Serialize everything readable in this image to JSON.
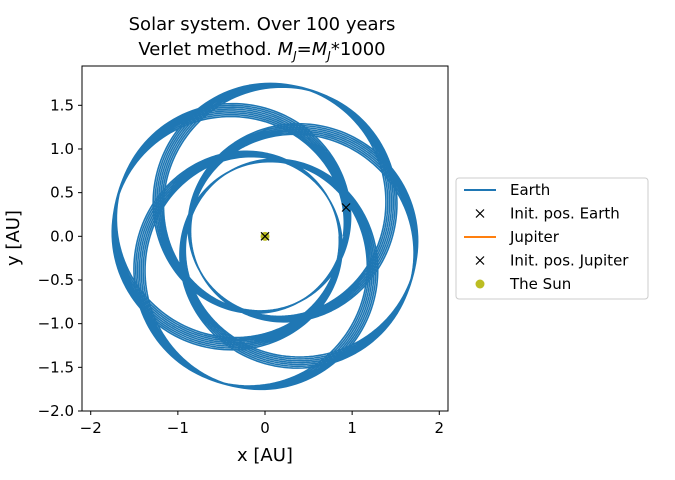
{
  "chart_data": {
    "type": "line",
    "title_line1": "Solar system. Over 100 years",
    "title_line2_prefix": "Verlet method. ",
    "title_line2_m1": "M",
    "title_line2_sub1": "J",
    "title_line2_eq": "=",
    "title_line2_m2": "M",
    "title_line2_sub2": "J",
    "title_line2_suffix": "*1000",
    "xlabel": "x [AU]",
    "ylabel": "y [AU]",
    "xlim": [
      -2.1,
      2.1
    ],
    "ylim": [
      -2.0,
      1.95
    ],
    "xticks": [
      -2,
      -1,
      0,
      1,
      2
    ],
    "xtick_labels": [
      "−2",
      "−1",
      "0",
      "1",
      "2"
    ],
    "yticks": [
      -2.0,
      -1.5,
      -1.0,
      -0.5,
      0.0,
      0.5,
      1.0,
      1.5
    ],
    "ytick_labels": [
      "−2.0",
      "−1.5",
      "−1.0",
      "−0.5",
      "0.0",
      "0.5",
      "1.0",
      "1.5"
    ],
    "legend_position": "right",
    "series": [
      {
        "name": "Earth",
        "kind": "line",
        "color": "#1f77b4",
        "orbit": {
          "semi_major_axis": 1.3,
          "eccentricity": 0.35,
          "precession_deg_per_loop": 71.5,
          "loops": 36,
          "perihelion_start_deg": -40
        }
      },
      {
        "name": "Init. pos. Earth",
        "kind": "marker-x",
        "color": "#000000",
        "x": 0.93,
        "y": 0.33
      },
      {
        "name": "Jupiter",
        "kind": "line",
        "color": "#ff7f0e"
      },
      {
        "name": "Init. pos. Jupiter",
        "kind": "marker-x",
        "color": "#000000",
        "x": 0.0,
        "y": 0.0
      },
      {
        "name": "The Sun",
        "kind": "marker-dot",
        "color": "#bcbd22",
        "x": 0.0,
        "y": 0.0
      }
    ]
  }
}
